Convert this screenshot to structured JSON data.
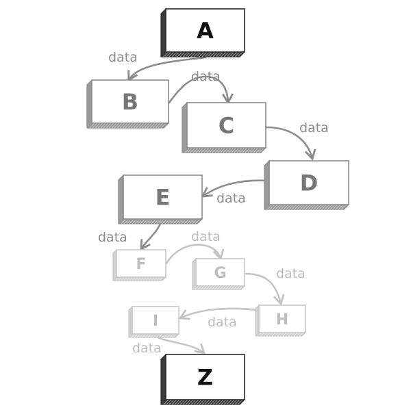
{
  "diagram": {
    "nodes": [
      {
        "id": "A",
        "label": "A",
        "shade": "dark"
      },
      {
        "id": "B",
        "label": "B",
        "shade": "mid"
      },
      {
        "id": "C",
        "label": "C",
        "shade": "mid"
      },
      {
        "id": "D",
        "label": "D",
        "shade": "mid"
      },
      {
        "id": "E",
        "label": "E",
        "shade": "mid"
      },
      {
        "id": "F",
        "label": "F",
        "shade": "light"
      },
      {
        "id": "G",
        "label": "G",
        "shade": "light"
      },
      {
        "id": "H",
        "label": "H",
        "shade": "light"
      },
      {
        "id": "I",
        "label": "I",
        "shade": "light"
      },
      {
        "id": "Z",
        "label": "Z",
        "shade": "dark"
      }
    ],
    "edges": [
      {
        "from": "A",
        "to": "B",
        "label": "data"
      },
      {
        "from": "B",
        "to": "C",
        "label": "data"
      },
      {
        "from": "C",
        "to": "D",
        "label": "data"
      },
      {
        "from": "D",
        "to": "E",
        "label": "data"
      },
      {
        "from": "E",
        "to": "F",
        "label": "data"
      },
      {
        "from": "F",
        "to": "G",
        "label": "data"
      },
      {
        "from": "G",
        "to": "H",
        "label": "data"
      },
      {
        "from": "H",
        "to": "I",
        "label": "data"
      },
      {
        "from": "I",
        "to": "Z",
        "label": "data"
      }
    ]
  }
}
